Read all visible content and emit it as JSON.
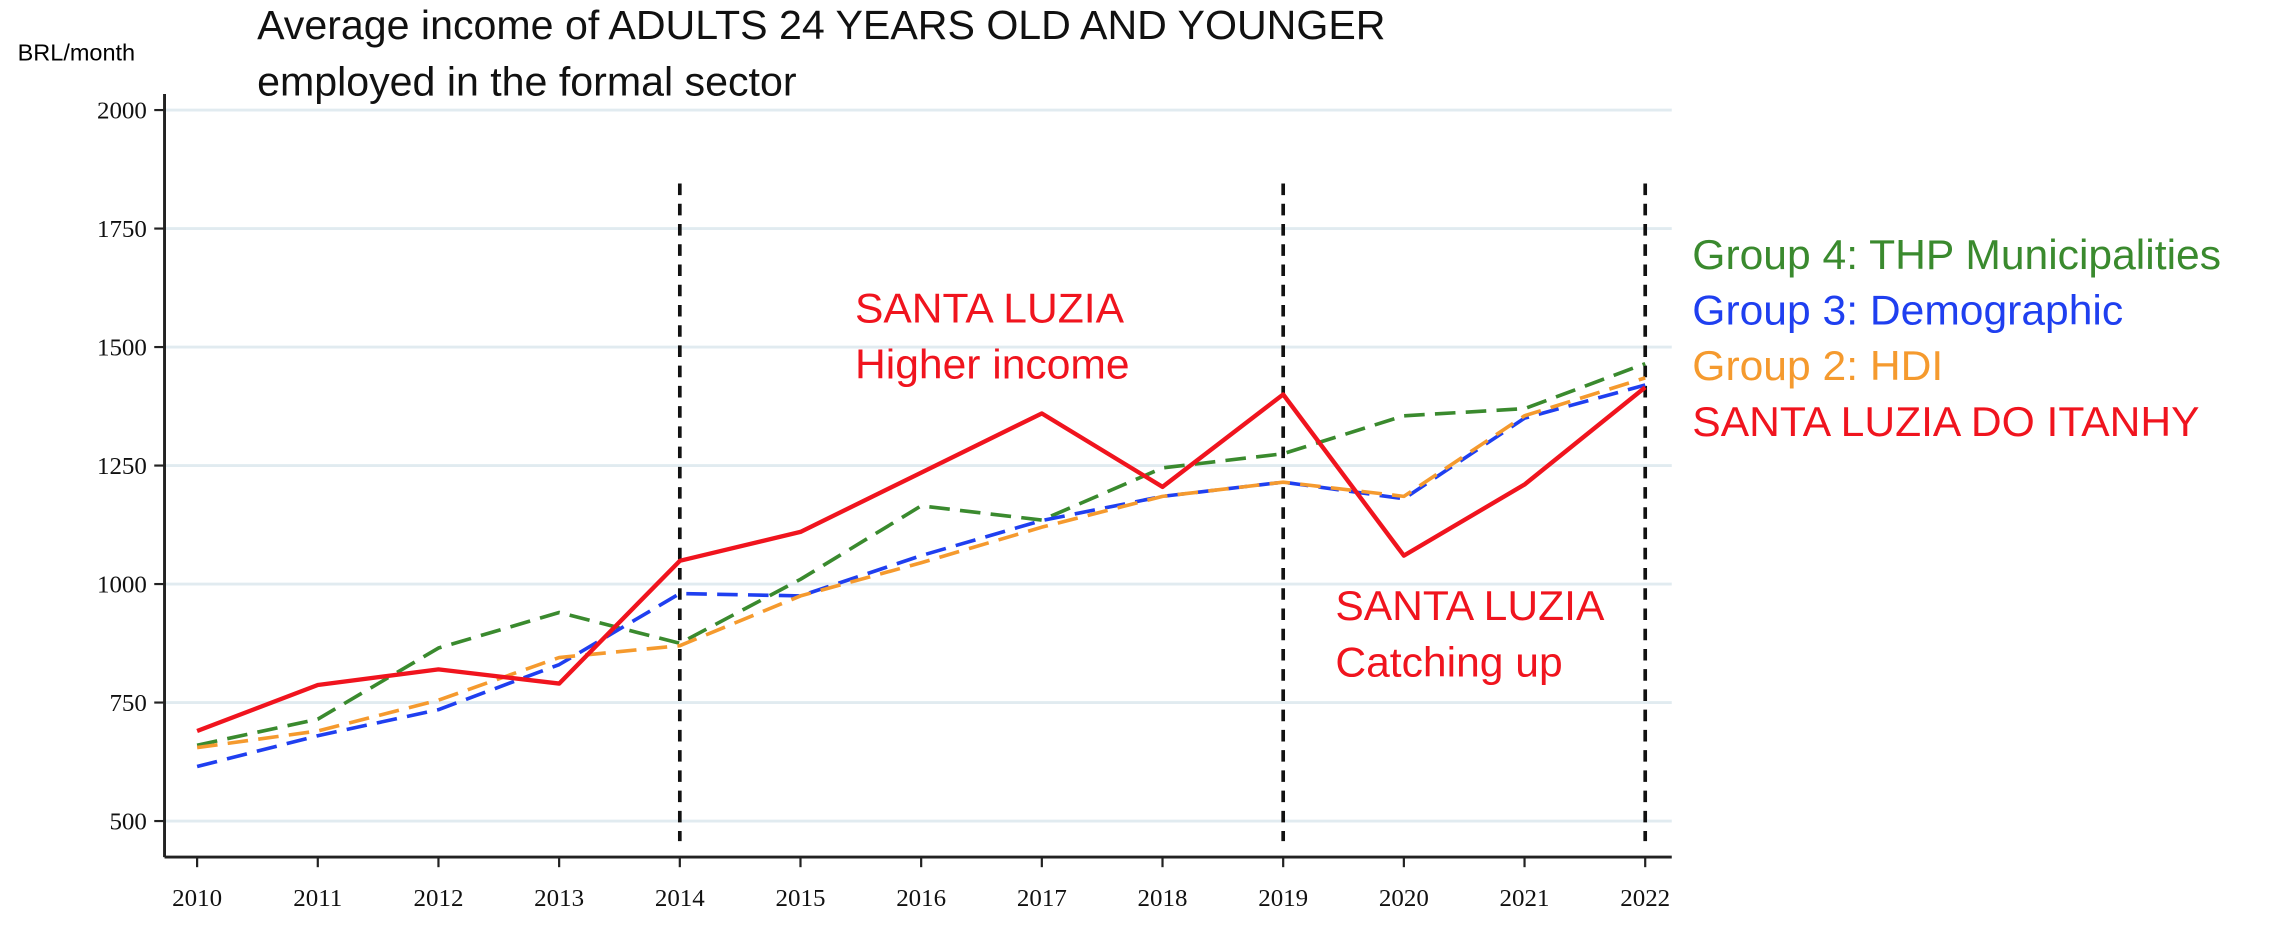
{
  "chart_data": {
    "type": "line",
    "title": [
      "Average income of ADULTS 24 YEARS OLD AND YOUNGER",
      "employed in the formal sector"
    ],
    "y_label": "BRL/month",
    "x": [
      2010,
      2011,
      2012,
      2013,
      2014,
      2015,
      2016,
      2017,
      2018,
      2019,
      2020,
      2021,
      2022
    ],
    "xlim": [
      2009.73,
      2022.22
    ],
    "xticks": [
      2010,
      2011,
      2012,
      2013,
      2014,
      2015,
      2016,
      2017,
      2018,
      2019,
      2020,
      2021,
      2022
    ],
    "ylim": [
      424,
      2034
    ],
    "yticks": [
      500,
      750,
      1000,
      1250,
      1500,
      1750,
      2000
    ],
    "grid": true,
    "vertical_lines": [
      2014,
      2019,
      2022
    ],
    "series": [
      {
        "name": "Group 4: THP Municipalities",
        "color": "#3a8a2e",
        "dashed": true,
        "values": [
          660,
          715,
          865,
          940,
          875,
          1010,
          1165,
          1135,
          1245,
          1275,
          1355,
          1370,
          1465
        ]
      },
      {
        "name": "Group 3: Demographic",
        "color": "#1f3ff0",
        "dashed": true,
        "values": [
          615,
          680,
          735,
          830,
          980,
          975,
          1060,
          1134,
          1185,
          1215,
          1180,
          1350,
          1420
        ]
      },
      {
        "name": "Group 2: HDI",
        "color": "#f59a2e",
        "dashed": true,
        "values": [
          655,
          690,
          755,
          845,
          870,
          975,
          1045,
          1120,
          1185,
          1215,
          1185,
          1355,
          1435
        ]
      },
      {
        "name": "SANTA LUZIA DO ITANHY",
        "color": "#f0141e",
        "dashed": false,
        "values": [
          690,
          787,
          820,
          790,
          1049,
          1110,
          1235,
          1360,
          1205,
          1400,
          1060,
          1210,
          1415
        ]
      }
    ],
    "annotations": [
      {
        "lines": [
          "SANTA LUZIA",
          "Higher income"
        ],
        "color": "#f0141e"
      },
      {
        "lines": [
          "SANTA LUZIA",
          "Catching up"
        ],
        "color": "#f0141e"
      }
    ]
  }
}
